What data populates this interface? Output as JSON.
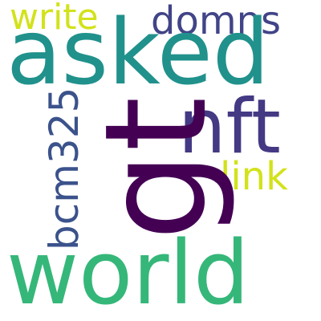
{
  "words": {
    "world": {
      "text": "world",
      "color": "#35b779"
    },
    "asked": {
      "text": "asked",
      "color": "#21918c"
    },
    "gt": {
      "text": "gt",
      "color": "#440154"
    },
    "nft": {
      "text": "nft",
      "color": "#443983"
    },
    "domns": {
      "text": "domns",
      "color": "#414487"
    },
    "write": {
      "text": "write",
      "color": "#d2e21b"
    },
    "link": {
      "text": "link",
      "color": "#d2e21b"
    },
    "bcm325": {
      "text": "bcm325",
      "color": "#3b528b"
    }
  }
}
